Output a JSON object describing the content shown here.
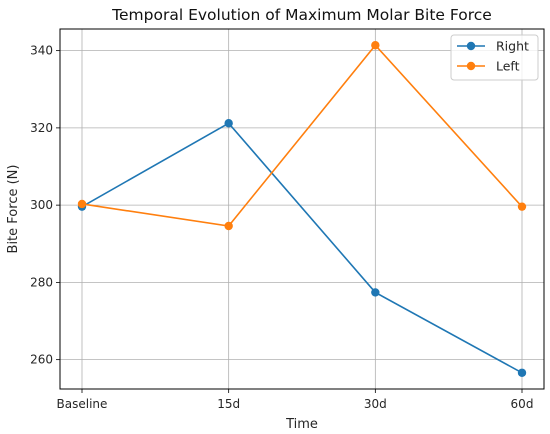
{
  "chart_data": {
    "type": "line",
    "title": "Temporal Evolution of Maximum Molar Bite Force",
    "xlabel": "Time",
    "ylabel": "Bite Force (N)",
    "categories": [
      "Baseline",
      "15d",
      "30d",
      "60d"
    ],
    "series": [
      {
        "name": "Right",
        "color": "#1f77b4",
        "values": [
          299.6,
          321.2,
          277.4,
          256.6
        ]
      },
      {
        "name": "Left",
        "color": "#ff7f0e",
        "values": [
          300.3,
          294.6,
          341.4,
          299.6
        ]
      }
    ],
    "ylim": [
      252.4,
      345.6
    ],
    "yticks": [
      260,
      280,
      300,
      320,
      340
    ],
    "grid": true,
    "legend_position": "top-right"
  }
}
